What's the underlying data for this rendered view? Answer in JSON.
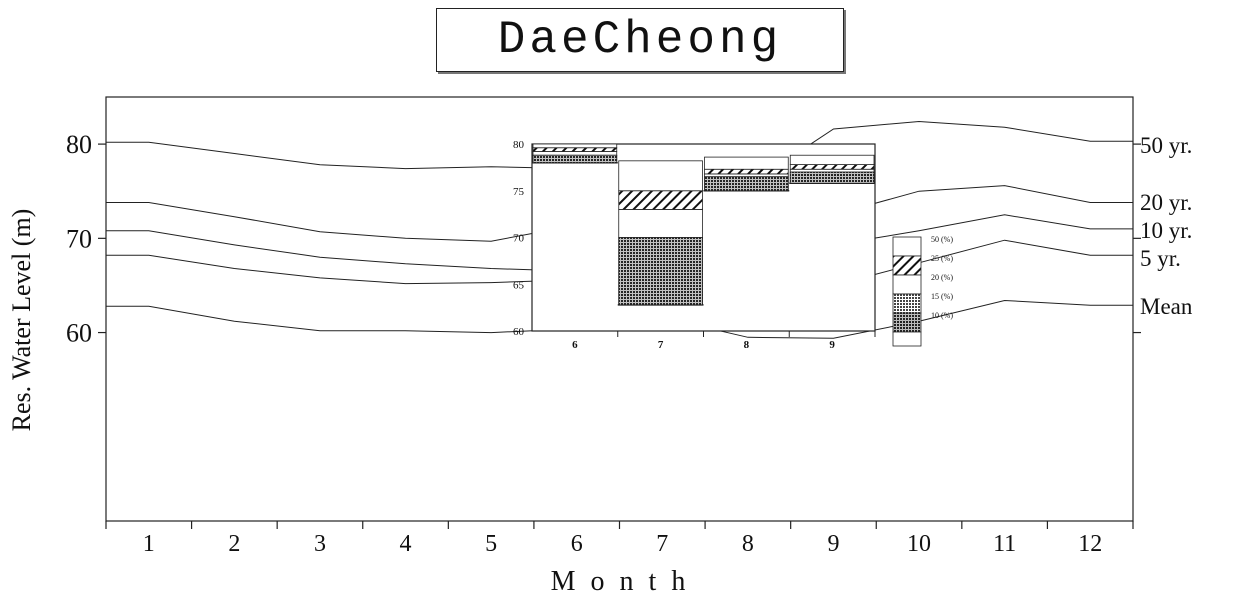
{
  "chart_data": [
    {
      "type": "line",
      "title": "DaeCheong",
      "xlabel": "M o n t h",
      "ylabel": "Res. Water Level (m)",
      "x": [
        1,
        2,
        3,
        4,
        5,
        6,
        7,
        8,
        9,
        10,
        11,
        12
      ],
      "xlim": [
        0.5,
        12.5
      ],
      "ylim": [
        40,
        85
      ],
      "yticks": [
        60,
        70,
        80
      ],
      "grid": false,
      "series": [
        {
          "name": "50 yr.",
          "values": [
            80.2,
            79.0,
            77.8,
            77.4,
            77.6,
            77.4,
            77.0,
            75.6,
            81.6,
            82.4,
            81.8,
            80.3
          ]
        },
        {
          "name": "20 yr.",
          "values": [
            73.8,
            72.3,
            70.7,
            70.0,
            69.7,
            71.4,
            71.0,
            67.8,
            72.5,
            75.0,
            75.6,
            73.8
          ]
        },
        {
          "name": "10 yr.",
          "values": [
            70.8,
            69.3,
            68.0,
            67.3,
            66.8,
            66.5,
            65.0,
            62.1,
            69.3,
            70.8,
            72.5,
            71.0
          ]
        },
        {
          "name": "5 yr.",
          "values": [
            68.2,
            66.8,
            65.8,
            65.2,
            65.3,
            65.6,
            64.6,
            61.8,
            65.0,
            67.4,
            69.8,
            68.2
          ]
        },
        {
          "name": "Mean",
          "values": [
            62.8,
            61.2,
            60.2,
            60.2,
            60.0,
            60.4,
            61.6,
            59.5,
            59.4,
            61.2,
            63.4,
            62.9
          ]
        }
      ],
      "xtick_labels": [
        "1",
        "2",
        "3",
        "4",
        "5",
        "6",
        "7",
        "8",
        "9",
        "10",
        "11",
        "12"
      ],
      "ytick_labels": [
        "60",
        "70",
        "80"
      ]
    },
    {
      "type": "bar",
      "title": "",
      "categories": [
        "6",
        "7",
        "8",
        "9"
      ],
      "ylim": [
        60,
        80
      ],
      "ytick_labels": [
        "60",
        "65",
        "70",
        "75",
        "80"
      ],
      "legend_placement": "right",
      "legend": [
        "50 (%)",
        "25 (%)",
        "20 (%)",
        "15 (%)",
        "10 (%)"
      ],
      "series": [
        {
          "name": "10 (%)",
          "values": [
            78.0,
            62.8,
            75.0,
            75.8
          ]
        },
        {
          "name": "15 (%)",
          "values": [
            78.8,
            70.0,
            76.5,
            77.0
          ]
        },
        {
          "name": "20 (%)",
          "values": [
            79.2,
            73.0,
            76.8,
            77.3
          ]
        },
        {
          "name": "25 (%)",
          "values": [
            79.6,
            75.0,
            77.3,
            77.8
          ]
        },
        {
          "name": "50 (%)",
          "values": [
            80.0,
            78.2,
            78.6,
            78.8
          ]
        }
      ]
    }
  ],
  "labels": {
    "title": "DaeCheong",
    "xlabel": "M o n t h",
    "ylabel": "Res. Water Level (m)",
    "legend_title": ""
  },
  "colors": {
    "line": "#222222",
    "hatch": "#111111",
    "dots": "#444444"
  }
}
